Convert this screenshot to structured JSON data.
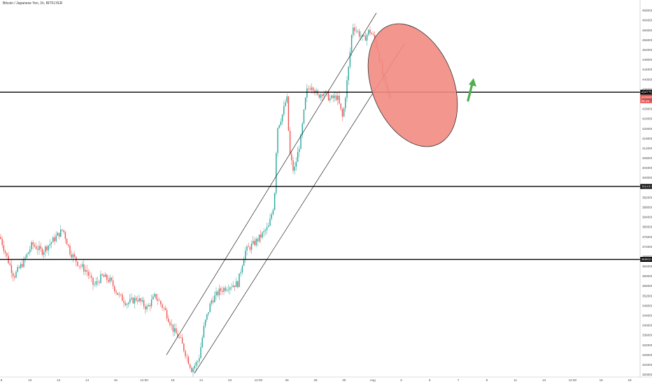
{
  "chart_data": {
    "type": "candlestick",
    "title": "Bitcoin / Japanese Yen, 1h, BITFLYER",
    "xlabel": "",
    "ylabel": "",
    "x_tick_labels": [
      "8",
      "10",
      "12",
      "14",
      "16",
      "12:00",
      "19",
      "21",
      "23",
      "12:00",
      "26",
      "28",
      "30",
      "Aug",
      "3",
      "5",
      "7",
      "9",
      "11",
      "13",
      "12:00",
      "16",
      "18"
    ],
    "y_tick_labels": [
      "4680000",
      "4640000",
      "4600000",
      "4560000",
      "4520000",
      "4480000",
      "4440000",
      "4400000",
      "4360000",
      "4320000",
      "4280000",
      "4240000",
      "4200000",
      "4160000",
      "4120000",
      "4080000",
      "4040000",
      "4000000",
      "3960000",
      "3920000",
      "3880000",
      "3840000",
      "3800000",
      "3760000",
      "3720000",
      "3680000",
      "3640000",
      "3600000",
      "3560000",
      "3520000",
      "3480000",
      "3440000",
      "3400000",
      "3360000",
      "3320000",
      "3280000",
      "3240000",
      "3200000"
    ],
    "ylim": [
      3190000,
      4700000
    ],
    "grid": false,
    "horizontal_levels": [
      {
        "value": 4347750,
        "label": "4347750"
      },
      {
        "value": 3964600,
        "label": "3964600"
      },
      {
        "value": 3668212,
        "label": "3668212"
      }
    ],
    "current_price": {
      "value": 4326000,
      "label": "4326000",
      "countdown": "28:36"
    },
    "channel_lines": [
      {
        "from": {
          "index": 0,
          "price": 3280000
        },
        "to": {
          "index": 1,
          "price": 4670000
        }
      },
      {
        "from": {
          "index": 0,
          "price": 3205000
        },
        "to": {
          "index": 1,
          "price": 4545000
        }
      }
    ],
    "colors": {
      "up": "#26a69a",
      "down": "#ef5350",
      "highlight": "#f28b82",
      "arrow": "#4caf50",
      "line": "#000000"
    },
    "ohlc_path": [
      [
        0,
        3760000
      ],
      [
        12,
        3660000
      ],
      [
        20,
        3600000
      ],
      [
        34,
        3660000
      ],
      [
        46,
        3730000
      ],
      [
        60,
        3700000
      ],
      [
        74,
        3740000
      ],
      [
        90,
        3790000
      ],
      [
        100,
        3700000
      ],
      [
        112,
        3650000
      ],
      [
        124,
        3620000
      ],
      [
        134,
        3560000
      ],
      [
        146,
        3600000
      ],
      [
        158,
        3580000
      ],
      [
        170,
        3520000
      ],
      [
        182,
        3490000
      ],
      [
        196,
        3510000
      ],
      [
        210,
        3470000
      ],
      [
        222,
        3520000
      ],
      [
        236,
        3460000
      ],
      [
        248,
        3380000
      ],
      [
        258,
        3340000
      ],
      [
        266,
        3280000
      ],
      [
        274,
        3220000
      ],
      [
        284,
        3260000
      ],
      [
        292,
        3400000
      ],
      [
        302,
        3500000
      ],
      [
        314,
        3540000
      ],
      [
        326,
        3560000
      ],
      [
        340,
        3570000
      ],
      [
        350,
        3700000
      ],
      [
        362,
        3730000
      ],
      [
        372,
        3760000
      ],
      [
        384,
        3800000
      ],
      [
        392,
        3900000
      ],
      [
        396,
        4200000
      ],
      [
        404,
        4260000
      ],
      [
        410,
        4330000
      ],
      [
        414,
        4100000
      ],
      [
        420,
        4020000
      ],
      [
        430,
        4160000
      ],
      [
        438,
        4350000
      ],
      [
        446,
        4380000
      ],
      [
        454,
        4330000
      ],
      [
        462,
        4350000
      ],
      [
        472,
        4320000
      ],
      [
        482,
        4330000
      ],
      [
        490,
        4240000
      ],
      [
        498,
        4440000
      ],
      [
        504,
        4620000
      ],
      [
        512,
        4590000
      ],
      [
        520,
        4560000
      ],
      [
        528,
        4600000
      ],
      [
        534,
        4570000
      ],
      [
        540,
        4520000
      ],
      [
        546,
        4430000
      ],
      [
        552,
        4360000
      ],
      [
        558,
        4326000
      ]
    ]
  }
}
